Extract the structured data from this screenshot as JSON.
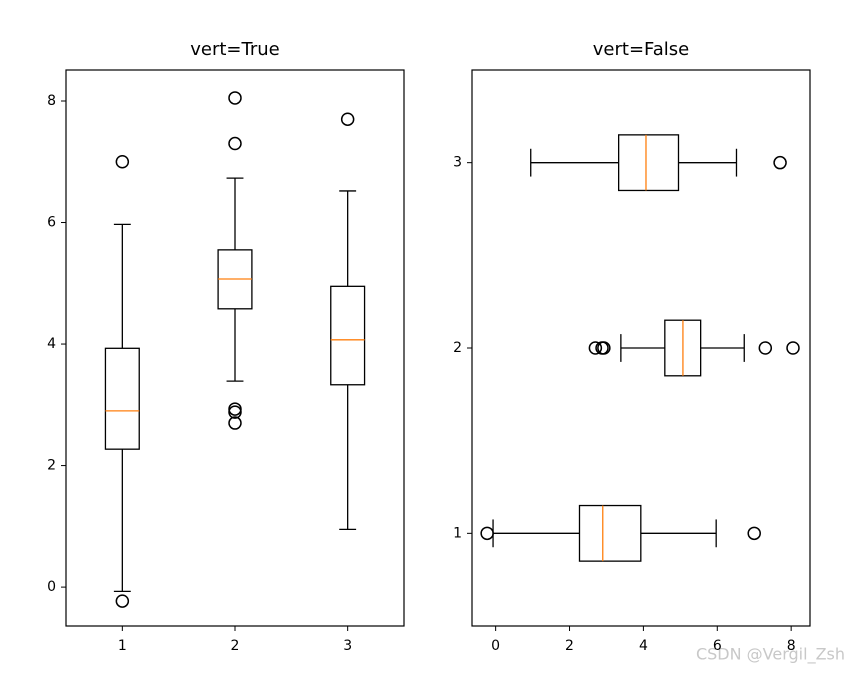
{
  "chart_data": [
    {
      "type": "boxplot",
      "title": "vert=True",
      "orientation": "vertical",
      "categories": [
        "1",
        "2",
        "3"
      ],
      "boxes": [
        {
          "whislo": -0.07,
          "q1": 2.27,
          "med": 2.9,
          "q3": 3.93,
          "whishi": 5.97,
          "fliers": [
            7.0,
            -0.23
          ]
        },
        {
          "whislo": 3.39,
          "q1": 4.58,
          "med": 5.07,
          "q3": 5.55,
          "whishi": 6.73,
          "fliers": [
            8.05,
            7.3,
            2.93,
            2.88,
            2.7
          ]
        },
        {
          "whislo": 0.95,
          "q1": 3.33,
          "med": 4.07,
          "q3": 4.95,
          "whishi": 6.52,
          "fliers": [
            7.7
          ]
        }
      ],
      "color": "#000000",
      "median_color": "#ff7f0e",
      "ylim": [
        -0.64,
        8.51
      ],
      "yticks": [
        0,
        2,
        4,
        6,
        8
      ]
    },
    {
      "type": "boxplot",
      "title": "vert=False",
      "orientation": "horizontal",
      "categories": [
        "1",
        "2",
        "3"
      ],
      "boxes": [
        {
          "whislo": -0.07,
          "q1": 2.27,
          "med": 2.9,
          "q3": 3.93,
          "whishi": 5.97,
          "fliers": [
            7.0,
            -0.23
          ]
        },
        {
          "whislo": 3.39,
          "q1": 4.58,
          "med": 5.07,
          "q3": 5.55,
          "whishi": 6.73,
          "fliers": [
            8.05,
            7.3,
            2.93,
            2.88,
            2.7
          ]
        },
        {
          "whislo": 0.95,
          "q1": 3.33,
          "med": 4.07,
          "q3": 4.95,
          "whishi": 6.52,
          "fliers": [
            7.7
          ]
        }
      ],
      "color": "#000000",
      "median_color": "#ff7f0e",
      "xlim": [
        -0.64,
        8.51
      ],
      "xticks": [
        0,
        2,
        4,
        6,
        8
      ]
    }
  ],
  "watermark": "CSDN @Vergil_Zsh"
}
